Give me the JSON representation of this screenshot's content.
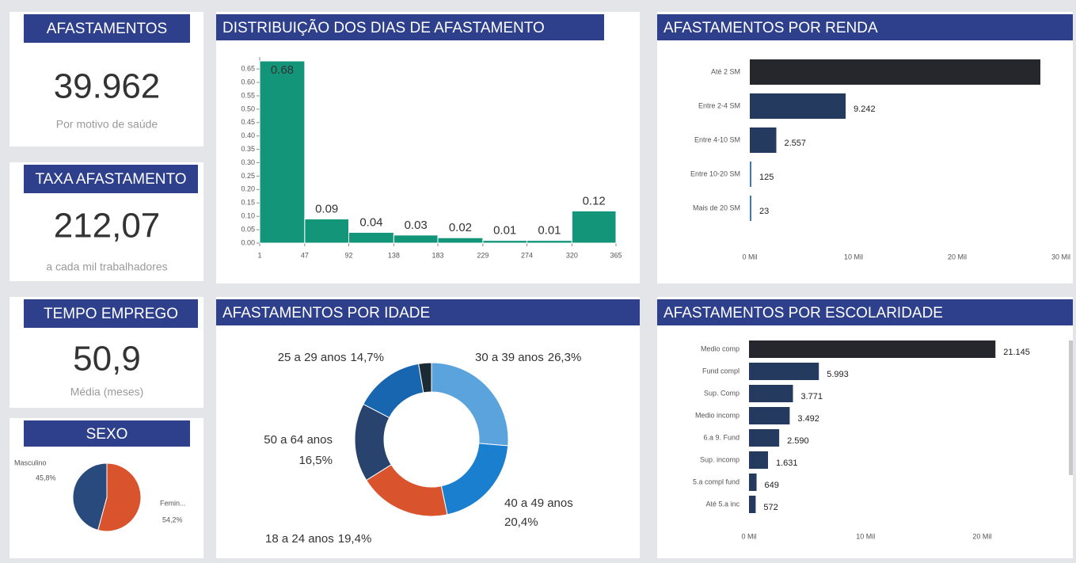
{
  "cards": [
    {
      "title": "AFASTAMENTOS",
      "value": "39.962",
      "caption": "Por motivo de saúde"
    },
    {
      "title": "TAXA AFASTAMENTO",
      "value": "212,07",
      "caption": "a cada mil trabalhadores"
    },
    {
      "title": "TEMPO EMPREGO",
      "value": "50,9",
      "caption": "Média (meses)"
    }
  ],
  "chart_data": [
    {
      "type": "histogram",
      "title": "DISTRIBUIÇÃO DOS DIAS DE AFASTAMENTO",
      "bins": [
        1,
        47,
        92,
        138,
        183,
        229,
        274,
        320,
        365
      ],
      "counts": [
        0.68,
        0.09,
        0.04,
        0.03,
        0.02,
        0.01,
        0.01,
        0.12
      ],
      "color": "#13957a",
      "xlim": [
        1,
        365
      ],
      "xticks": [
        1,
        47,
        92,
        138,
        183,
        229,
        274,
        320,
        365
      ],
      "ylim": [
        0,
        0.68
      ],
      "yticks": [
        {
          "value": 0,
          "label": "0.00"
        },
        {
          "value": 0.05,
          "label": "0.05"
        },
        {
          "value": 0.1,
          "label": "0.10"
        },
        {
          "value": 0.15,
          "label": "0.15"
        },
        {
          "value": 0.2,
          "label": "0.20"
        },
        {
          "value": 0.25,
          "label": "0.25"
        },
        {
          "value": 0.3,
          "label": "0.30"
        },
        {
          "value": 0.35,
          "label": "0.35"
        },
        {
          "value": 0.4,
          "label": "0.40"
        },
        {
          "value": 0.45,
          "label": "0.45"
        },
        {
          "value": 0.5,
          "label": "0.50"
        },
        {
          "value": 0.55,
          "label": "0.55"
        },
        {
          "value": 0.6,
          "label": "0.60"
        },
        {
          "value": 0.65,
          "label": "0.65"
        }
      ]
    },
    {
      "type": "pie",
      "title": "SEXO",
      "categories": [
        "Masculino",
        "Femin..."
      ],
      "values": [
        45.8,
        54.2
      ],
      "value_labels": [
        "45,8%",
        "54,2%"
      ],
      "colors": [
        "#284a7d",
        "#d9542c"
      ]
    },
    {
      "type": "pie",
      "donut": true,
      "title": "AFASTAMENTOS POR IDADE",
      "categories": [
        "30 a 39 anos",
        "40 a 49 anos",
        "18 a 24 anos",
        "50 a 64 anos",
        "25 a 29 anos",
        null
      ],
      "values": [
        26.3,
        20.4,
        19.4,
        16.5,
        14.7,
        2.7
      ],
      "value_labels": [
        "26,3%",
        "20,4%",
        "19,4%",
        "16,5%",
        "14,7%",
        null
      ],
      "colors": [
        "#5ba3dc",
        "#1b7fcf",
        "#d9542c",
        "#27436e",
        "#1966b0",
        "#1c2b33"
      ]
    },
    {
      "type": "bar",
      "orientation": "horizontal",
      "title": "AFASTAMENTOS POR RENDA",
      "categories": [
        "Até 2 SM",
        "Entre 2-4 SM",
        "Entre 4-10 SM",
        "Entre 10-20 SM",
        "Mais de 20 SM"
      ],
      "values": [
        28015,
        9242,
        2557,
        125,
        23
      ],
      "value_labels": [
        null,
        "9.242",
        "2.557",
        "125",
        "23"
      ],
      "colors": [
        "#25272c",
        "#243a5e",
        "#243a5e",
        "#3a78c0",
        "#3a78c0"
      ],
      "xlim": [
        0,
        30000
      ],
      "xticks": [
        {
          "value": 0,
          "label": "0 Mil"
        },
        {
          "value": 10000,
          "label": "10 Mil"
        },
        {
          "value": 20000,
          "label": "20 Mil"
        },
        {
          "value": 30000,
          "label": "30 Mil"
        }
      ]
    },
    {
      "type": "bar",
      "orientation": "horizontal",
      "title": "AFASTAMENTOS POR ESCOLARIDADE",
      "categories": [
        "Medio comp",
        "Fund compl",
        "Sup. Comp",
        "Medio incomp",
        "6.a 9. Fund",
        "Sup. incomp",
        "5.a compl fund",
        "Até 5.a inc"
      ],
      "values": [
        21145,
        5993,
        3771,
        3492,
        2590,
        1631,
        649,
        572
      ],
      "value_labels": [
        "21.145",
        "5.993",
        "3.771",
        "3.492",
        "2.590",
        "1.631",
        "649",
        "572"
      ],
      "colors": [
        "#25272c",
        "#243a5e",
        "#243a5e",
        "#243a5e",
        "#243a5e",
        "#243a5e",
        "#243a5e",
        "#243a5e"
      ],
      "xlim": [
        0,
        25000
      ],
      "xticks": [
        {
          "value": 0,
          "label": "0 Mil"
        },
        {
          "value": 10000,
          "label": "10 Mil"
        },
        {
          "value": 20000,
          "label": "20 Mil"
        }
      ]
    }
  ]
}
